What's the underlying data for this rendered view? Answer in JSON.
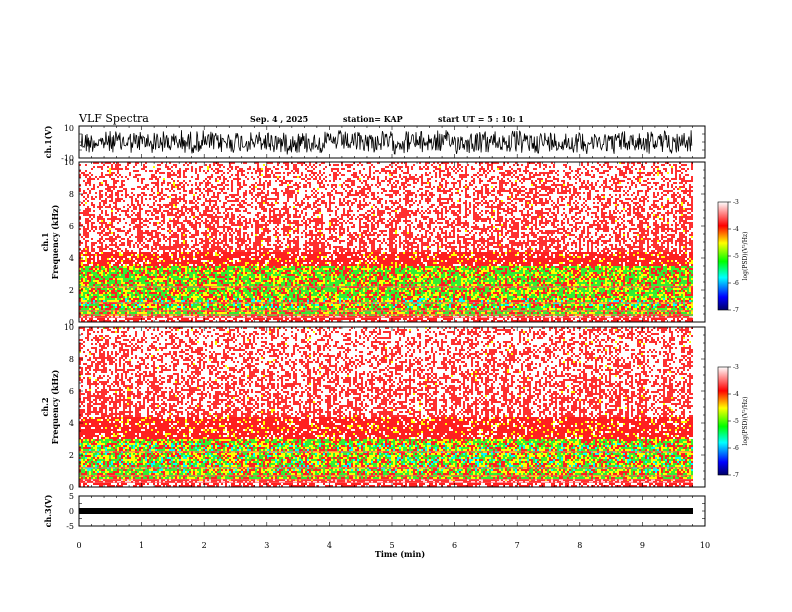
{
  "chart_data": {
    "type": "heatmap",
    "title": "VLF Spectra",
    "date": "Sep. 4 , 2025",
    "station": "station= KAP",
    "start_ut": "start UT =  5 : 10: 1",
    "xlabel": "Time (min)",
    "x_ticks": [
      "0",
      "1",
      "2",
      "3",
      "4",
      "5",
      "6",
      "7",
      "8",
      "9",
      "10"
    ],
    "xlim": [
      0,
      10
    ],
    "data_end_min": 9.8,
    "panels": {
      "wave1": {
        "ylabel": "ch.1(V)",
        "ylim": [
          -10,
          10
        ],
        "ticks": [
          "10",
          "-10"
        ]
      },
      "spec1": {
        "ylabel_ch": "ch.1",
        "ylabel": "Frequency (kHz)",
        "ylim": [
          0,
          10
        ],
        "ticks": [
          "10",
          "8",
          "6",
          "4",
          "2",
          "0"
        ],
        "green_band_khz": [
          0.5,
          3.5
        ],
        "cyan_band_khz": [
          1.0,
          1.6
        ]
      },
      "spec2": {
        "ylabel_ch": "ch.2",
        "ylabel": "Frequency (kHz)",
        "ylim": [
          0,
          10
        ],
        "ticks": [
          "10",
          "8",
          "6",
          "4",
          "2",
          "0"
        ],
        "green_band_khz": [
          0.6,
          3.0
        ],
        "cyan_band_khz": [
          1.0,
          2.8
        ]
      },
      "wave3": {
        "ylabel": "ch.3(V)",
        "ylim": [
          -5,
          5
        ],
        "ticks": [
          "5",
          "0",
          "-5"
        ],
        "signal_level_v": 0
      }
    },
    "colorbar": {
      "label": "log(PSD)(V²/Hz)",
      "range": [
        -7,
        -3
      ],
      "ticks": [
        "-3",
        "-4",
        "-5",
        "-6",
        "-7"
      ],
      "colors": [
        "#000066",
        "#0000ff",
        "#00ffff",
        "#00ff00",
        "#ffff00",
        "#ff0000",
        "#ffffff"
      ]
    }
  }
}
